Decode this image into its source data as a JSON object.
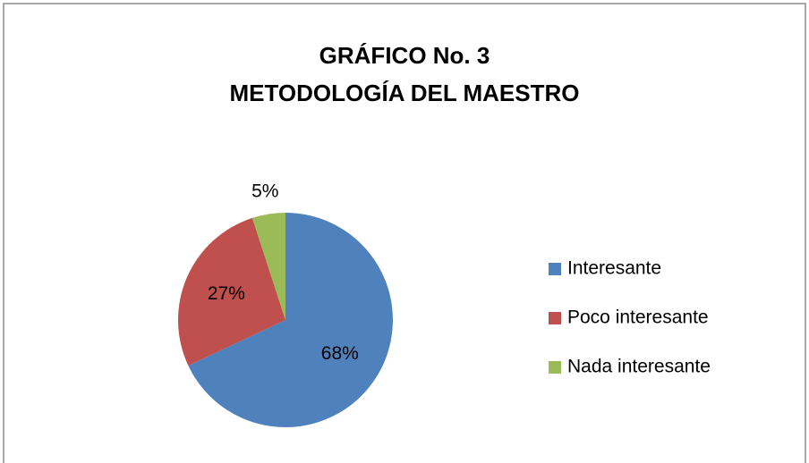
{
  "chart_data": {
    "type": "pie",
    "title": [
      "GRÁFICO No. 3",
      "METODOLOGÍA DEL MAESTRO"
    ],
    "categories": [
      "Interesante",
      "Poco interesante",
      "Nada interesante"
    ],
    "values": [
      68,
      27,
      5
    ],
    "value_labels": [
      "68%",
      "27%",
      "5%"
    ],
    "colors": [
      "#4f81bd",
      "#c0504d",
      "#9bbb59"
    ],
    "legend": "right"
  }
}
